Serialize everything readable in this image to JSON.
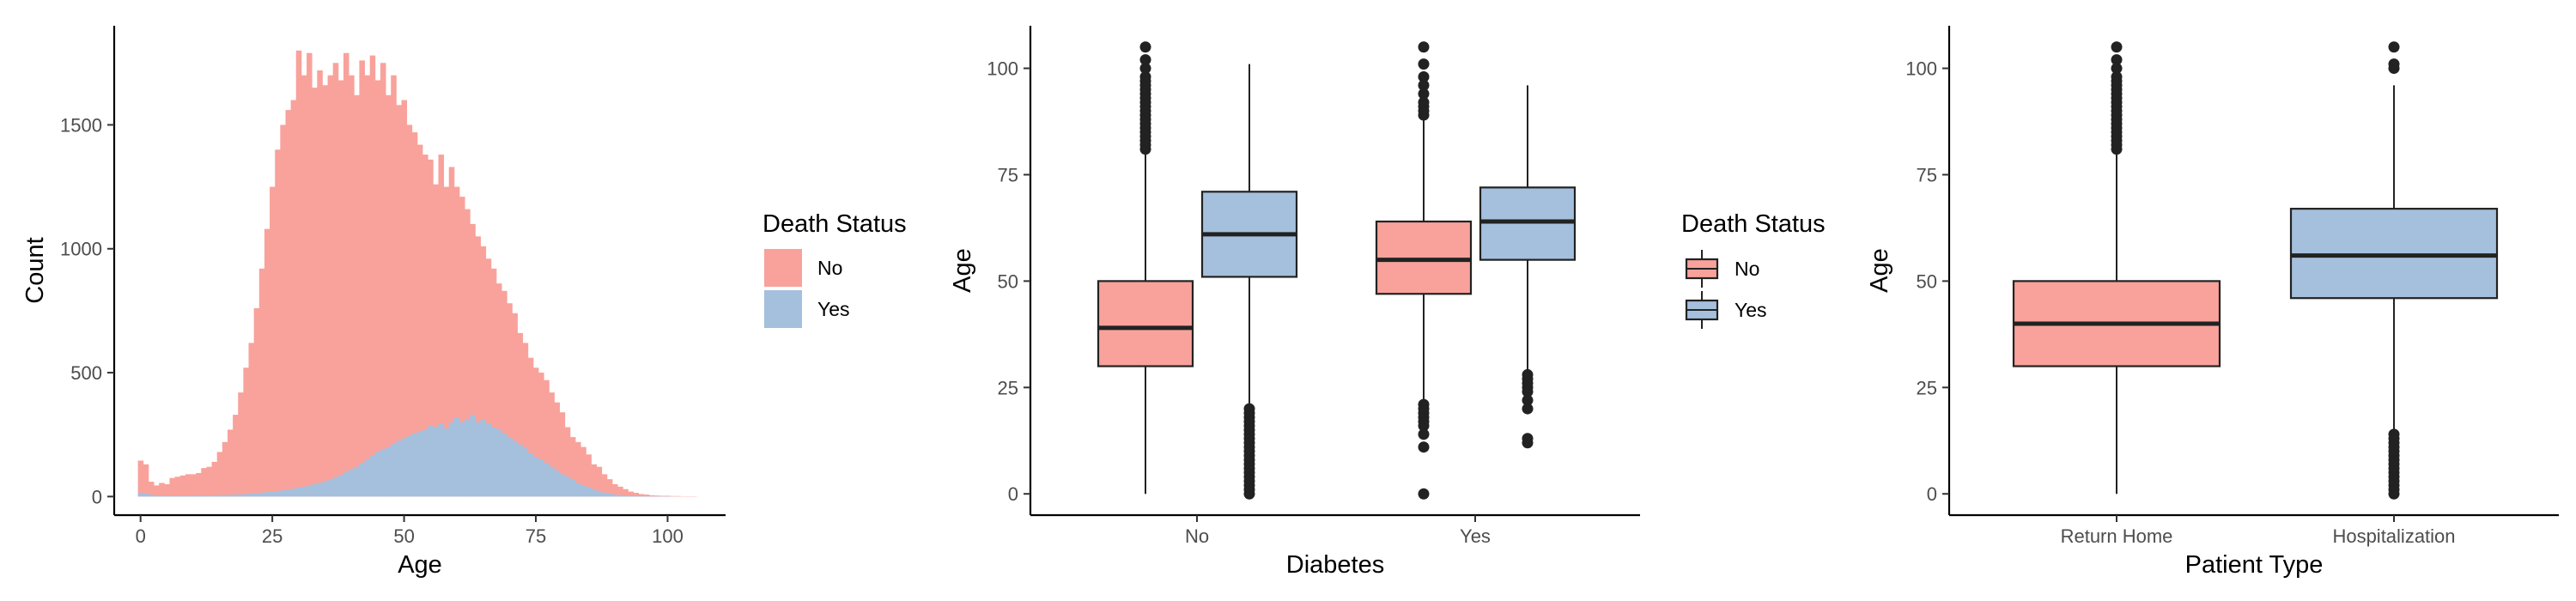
{
  "colors": {
    "no": "#F8A29B",
    "yes": "#A5C0DD",
    "ink": "#222222"
  },
  "chart_data": [
    {
      "type": "histogram",
      "xlabel": "Age",
      "ylabel": "Count",
      "xlim": [
        -5,
        111
      ],
      "ylim": [
        -75,
        1900
      ],
      "xticks": [
        "0",
        "25",
        "50",
        "75",
        "100"
      ],
      "yticks": [
        "0",
        "500",
        "1000",
        "1500"
      ],
      "bin_width": 1,
      "legend": {
        "title": "Death Status",
        "position": "right",
        "entries": [
          "No",
          "Yes"
        ]
      },
      "series": [
        {
          "name": "No",
          "x": [
            0,
            1,
            2,
            3,
            4,
            5,
            6,
            7,
            8,
            9,
            10,
            11,
            12,
            13,
            14,
            15,
            16,
            17,
            18,
            19,
            20,
            21,
            22,
            23,
            24,
            25,
            26,
            27,
            28,
            29,
            30,
            31,
            32,
            33,
            34,
            35,
            36,
            37,
            38,
            39,
            40,
            41,
            42,
            43,
            44,
            45,
            46,
            47,
            48,
            49,
            50,
            51,
            52,
            53,
            54,
            55,
            56,
            57,
            58,
            59,
            60,
            61,
            62,
            63,
            64,
            65,
            66,
            67,
            68,
            69,
            70,
            71,
            72,
            73,
            74,
            75,
            76,
            77,
            78,
            79,
            80,
            81,
            82,
            83,
            84,
            85,
            86,
            87,
            88,
            89,
            90,
            91,
            92,
            93,
            94,
            95,
            96,
            97,
            98,
            99,
            100,
            101,
            102,
            103,
            104,
            105
          ],
          "values": [
            145,
            130,
            60,
            45,
            55,
            50,
            75,
            80,
            85,
            90,
            90,
            95,
            115,
            120,
            140,
            180,
            220,
            270,
            330,
            420,
            520,
            620,
            760,
            920,
            1080,
            1250,
            1400,
            1500,
            1560,
            1600,
            1800,
            1700,
            1790,
            1650,
            1720,
            1660,
            1700,
            1750,
            1680,
            1790,
            1700,
            1620,
            1760,
            1700,
            1780,
            1680,
            1750,
            1620,
            1700,
            1580,
            1600,
            1500,
            1470,
            1420,
            1380,
            1360,
            1260,
            1380,
            1250,
            1330,
            1250,
            1210,
            1160,
            1100,
            1050,
            1010,
            960,
            920,
            860,
            830,
            780,
            740,
            660,
            620,
            560,
            520,
            500,
            470,
            420,
            380,
            340,
            280,
            240,
            220,
            200,
            170,
            130,
            120,
            90,
            70,
            50,
            40,
            30,
            20,
            15,
            10,
            8,
            5,
            4,
            3,
            3,
            2,
            2,
            1,
            1,
            1
          ]
        },
        {
          "name": "Yes",
          "x": [
            0,
            1,
            2,
            3,
            4,
            5,
            6,
            7,
            8,
            9,
            10,
            11,
            12,
            13,
            14,
            15,
            16,
            17,
            18,
            19,
            20,
            21,
            22,
            23,
            24,
            25,
            26,
            27,
            28,
            29,
            30,
            31,
            32,
            33,
            34,
            35,
            36,
            37,
            38,
            39,
            40,
            41,
            42,
            43,
            44,
            45,
            46,
            47,
            48,
            49,
            50,
            51,
            52,
            53,
            54,
            55,
            56,
            57,
            58,
            59,
            60,
            61,
            62,
            63,
            64,
            65,
            66,
            67,
            68,
            69,
            70,
            71,
            72,
            73,
            74,
            75,
            76,
            77,
            78,
            79,
            80,
            81,
            82,
            83,
            84,
            85,
            86,
            87,
            88,
            89,
            90,
            91,
            92,
            93,
            94,
            95,
            96,
            97,
            98,
            99,
            100,
            101,
            102,
            103,
            104,
            105
          ],
          "values": [
            15,
            12,
            8,
            5,
            4,
            4,
            4,
            4,
            4,
            4,
            4,
            5,
            5,
            5,
            5,
            6,
            6,
            7,
            8,
            9,
            10,
            12,
            14,
            16,
            18,
            20,
            22,
            25,
            28,
            32,
            36,
            40,
            45,
            50,
            55,
            62,
            70,
            78,
            88,
            98,
            110,
            120,
            135,
            150,
            165,
            180,
            190,
            200,
            215,
            225,
            235,
            245,
            255,
            262,
            270,
            285,
            280,
            295,
            275,
            300,
            320,
            300,
            310,
            330,
            300,
            310,
            295,
            280,
            270,
            255,
            240,
            225,
            210,
            195,
            175,
            160,
            150,
            135,
            120,
            105,
            90,
            80,
            70,
            55,
            45,
            38,
            30,
            22,
            16,
            12,
            8,
            6,
            5,
            4,
            3,
            2,
            2,
            1,
            1,
            1,
            1,
            0,
            0,
            0,
            0,
            0
          ]
        }
      ]
    },
    {
      "type": "boxplot",
      "xlabel": "Diabetes",
      "ylabel": "Age",
      "categories": [
        "No",
        "Yes"
      ],
      "ylim": [
        -5,
        110
      ],
      "yticks": [
        "0",
        "25",
        "50",
        "75",
        "100"
      ],
      "legend": {
        "title": "Death Status",
        "position": "right",
        "entries": [
          "No",
          "Yes"
        ]
      },
      "boxes": [
        {
          "category": "No",
          "group": "No",
          "min": 0,
          "q1": 30,
          "median": 39,
          "q3": 50,
          "max": 80,
          "outliers_high": [
            81,
            82,
            83,
            84,
            85,
            86,
            87,
            88,
            89,
            90,
            91,
            92,
            93,
            94,
            95,
            96,
            97,
            98,
            100,
            102,
            105
          ]
        },
        {
          "category": "No",
          "group": "Yes",
          "min": 21,
          "q1": 51,
          "median": 61,
          "q3": 71,
          "max": 101,
          "outliers_low": [
            0,
            1,
            2,
            3,
            4,
            5,
            6,
            7,
            8,
            9,
            10,
            11,
            12,
            13,
            14,
            15,
            16,
            17,
            18,
            19,
            20
          ]
        },
        {
          "category": "Yes",
          "group": "No",
          "min": 22,
          "q1": 47,
          "median": 55,
          "q3": 64,
          "max": 88,
          "outliers_low": [
            11,
            14,
            16,
            17,
            18,
            19,
            20,
            21
          ],
          "outliers_high": [
            89,
            90,
            91,
            92,
            94,
            96,
            98,
            101,
            105
          ],
          "outliers_extra": [
            0
          ]
        },
        {
          "category": "Yes",
          "group": "Yes",
          "min": 29,
          "q1": 55,
          "median": 64,
          "q3": 72,
          "max": 96,
          "outliers_low": [
            12,
            13,
            20,
            22,
            24,
            25,
            26,
            27,
            28
          ]
        }
      ]
    },
    {
      "type": "boxplot",
      "xlabel": "Patient Type",
      "ylabel": "Age",
      "categories": [
        "Return Home",
        "Hospitalization"
      ],
      "ylim": [
        -5,
        110
      ],
      "yticks": [
        "0",
        "25",
        "50",
        "75",
        "100"
      ],
      "boxes": [
        {
          "category": "Return Home",
          "group": "No",
          "min": 0,
          "q1": 30,
          "median": 40,
          "q3": 50,
          "max": 80,
          "outliers_high": [
            81,
            82,
            83,
            84,
            85,
            86,
            87,
            88,
            89,
            90,
            91,
            92,
            93,
            94,
            95,
            96,
            97,
            98,
            100,
            102,
            105
          ]
        },
        {
          "category": "Hospitalization",
          "group": "Yes",
          "min": 15,
          "q1": 46,
          "median": 56,
          "q3": 67,
          "max": 96,
          "outliers_low": [
            0,
            1,
            2,
            3,
            4,
            5,
            6,
            7,
            8,
            9,
            10,
            11,
            12,
            13,
            14
          ],
          "outliers_high": [
            100,
            101,
            105
          ]
        }
      ]
    }
  ]
}
